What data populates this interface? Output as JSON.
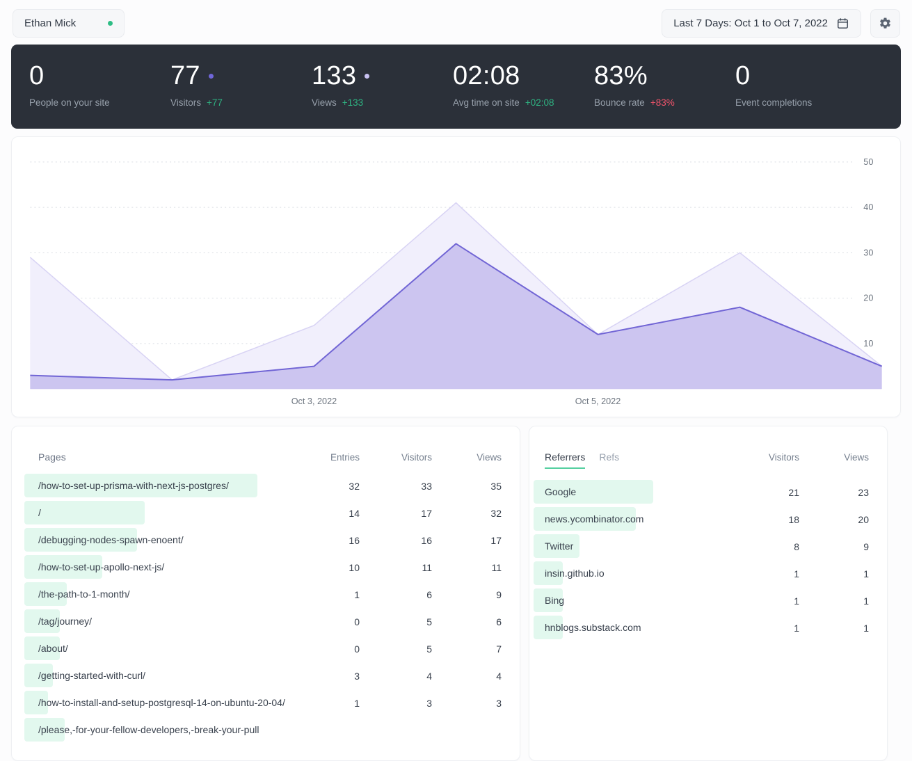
{
  "topbar": {
    "site_name": "Ethan Mick",
    "date_range_label": "Last 7 Days: Oct 1 to Oct 7, 2022"
  },
  "stats": [
    {
      "value": "0",
      "label": "People on your site"
    },
    {
      "value": "77",
      "label": "Visitors",
      "delta": "+77",
      "delta_type": "positive",
      "series_dot_color": "#7066d9"
    },
    {
      "value": "133",
      "label": "Views",
      "delta": "+133",
      "delta_type": "positive",
      "series_dot_color": "#c9c2f2"
    },
    {
      "value": "02:08",
      "label": "Avg time on site",
      "delta": "+02:08",
      "delta_type": "positive"
    },
    {
      "value": "83%",
      "label": "Bounce rate",
      "delta": "+83%",
      "delta_type": "negative"
    },
    {
      "value": "0",
      "label": "Event completions"
    }
  ],
  "chart_data": {
    "type": "area",
    "x": [
      "Oct 1, 2022",
      "Oct 2, 2022",
      "Oct 3, 2022",
      "Oct 4, 2022",
      "Oct 5, 2022",
      "Oct 6, 2022",
      "Oct 7, 2022"
    ],
    "series": [
      {
        "name": "Views",
        "values": [
          29,
          2,
          14,
          41,
          12,
          30,
          5
        ],
        "line_color": "#d8d3f4",
        "fill_color": "#f1effc"
      },
      {
        "name": "Visitors",
        "values": [
          3,
          2,
          5,
          32,
          12,
          18,
          5
        ],
        "line_color": "#7165d5",
        "fill_color": "#ccc5f0"
      }
    ],
    "y_ticks": [
      10,
      20,
      30,
      40,
      50
    ],
    "ylim": [
      0,
      55
    ],
    "x_axis_labels": [
      {
        "index": 2,
        "label": "Oct 3, 2022"
      },
      {
        "index": 4,
        "label": "Oct 5, 2022"
      }
    ],
    "grid": "dotted horizontal",
    "legend_position": "none"
  },
  "pages_card": {
    "title": "Pages",
    "columns": [
      "Entries",
      "Visitors",
      "Views"
    ],
    "rows": [
      {
        "page": "/how-to-set-up-prisma-with-next-js-postgres/",
        "entries": 32,
        "visitors": 33,
        "views": 35
      },
      {
        "page": "/",
        "entries": 14,
        "visitors": 17,
        "views": 32
      },
      {
        "page": "/debugging-nodes-spawn-enoent/",
        "entries": 16,
        "visitors": 16,
        "views": 17
      },
      {
        "page": "/how-to-set-up-apollo-next-js/",
        "entries": 10,
        "visitors": 11,
        "views": 11
      },
      {
        "page": "/the-path-to-1-month/",
        "entries": 1,
        "visitors": 6,
        "views": 9
      },
      {
        "page": "/tag/journey/",
        "entries": 0,
        "visitors": 5,
        "views": 6
      },
      {
        "page": "/about/",
        "entries": 0,
        "visitors": 5,
        "views": 7
      },
      {
        "page": "/getting-started-with-curl/",
        "entries": 3,
        "visitors": 4,
        "views": 4
      },
      {
        "page": "/how-to-install-and-setup-postgresql-14-on-ubuntu-20-04/",
        "entries": 1,
        "visitors": 3,
        "views": 3
      },
      {
        "page": "/please,-for-your-fellow-developers,-break-your-pull"
      }
    ]
  },
  "referrers_card": {
    "tabs": [
      "Referrers",
      "Refs"
    ],
    "active_tab": "Referrers",
    "columns": [
      "Visitors",
      "Views"
    ],
    "rows": [
      {
        "referrer": "Google",
        "visitors": 21,
        "views": 23
      },
      {
        "referrer": "news.ycombinator.com",
        "visitors": 18,
        "views": 20
      },
      {
        "referrer": "Twitter",
        "visitors": 8,
        "views": 9
      },
      {
        "referrer": "insin.github.io",
        "visitors": 1,
        "views": 1
      },
      {
        "referrer": "Bing",
        "visitors": 1,
        "views": 1
      },
      {
        "referrer": "hnblogs.substack.com",
        "visitors": 1,
        "views": 1
      }
    ]
  },
  "colors": {
    "dark_bar_bg": "#2b3039",
    "accent_green": "#2eb382",
    "delta_negative_red": "#f2546b",
    "highlight_mint": "#e2f8ee",
    "site_status_green": "#2ebd85",
    "visitors_purple": "#7165d5",
    "views_purple_light": "#ccc5f0",
    "tab_underline_green": "#55d0a0"
  },
  "icons": {
    "calendar": "calendar-icon",
    "settings": "gear-icon",
    "site_status": "green-dot",
    "visitors_series": "purple-dot-dark",
    "views_series": "purple-dot-light"
  }
}
